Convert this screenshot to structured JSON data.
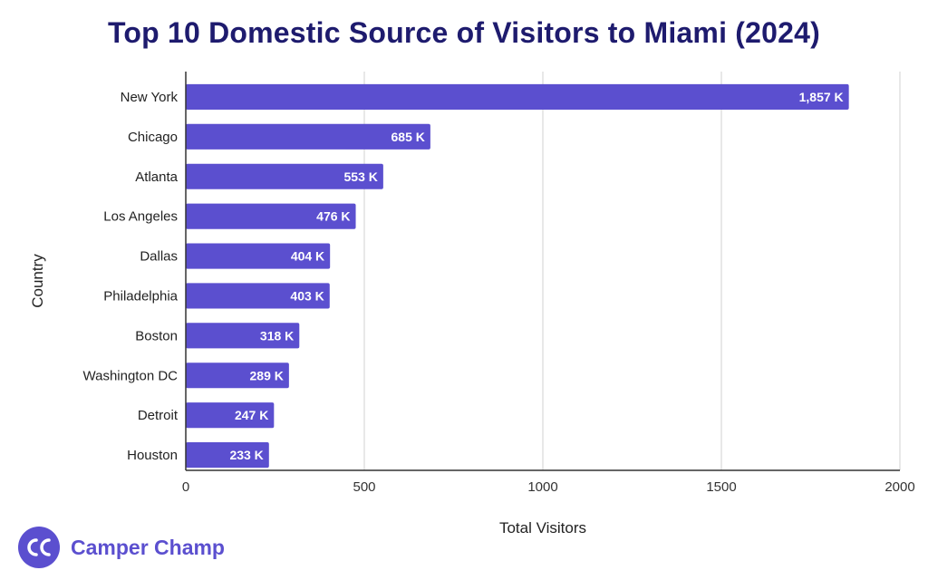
{
  "colors": {
    "bar": "#5b4fcf",
    "title": "#1e1b6e",
    "grid": "#d0d0d0",
    "axis": "#333333",
    "brand": "#5b4fcf"
  },
  "brand": {
    "name": "Camper Champ",
    "logo_text": "CC"
  },
  "chart_data": {
    "type": "bar",
    "orientation": "horizontal",
    "title": "Top 10 Domestic Source of Visitors to Miami (2024)",
    "xlabel": "Total Visitors",
    "ylabel": "Country",
    "categories": [
      "New York",
      "Chicago",
      "Atlanta",
      "Los Angeles",
      "Dallas",
      "Philadelphia",
      "Boston",
      "Washington DC",
      "Detroit",
      "Houston"
    ],
    "values": [
      1857,
      685,
      553,
      476,
      404,
      403,
      318,
      289,
      247,
      233
    ],
    "data_labels": [
      "1,857 K",
      "685 K",
      "553 K",
      "476 K",
      "404 K",
      "403 K",
      "318 K",
      "289 K",
      "247 K",
      "233 K"
    ],
    "xlim": [
      0,
      2000
    ],
    "xticks": [
      0,
      500,
      1000,
      1500,
      2000
    ],
    "xtick_labels": [
      "0",
      "500",
      "1000",
      "1500",
      "2000"
    ],
    "grid": true,
    "legend": "none"
  }
}
